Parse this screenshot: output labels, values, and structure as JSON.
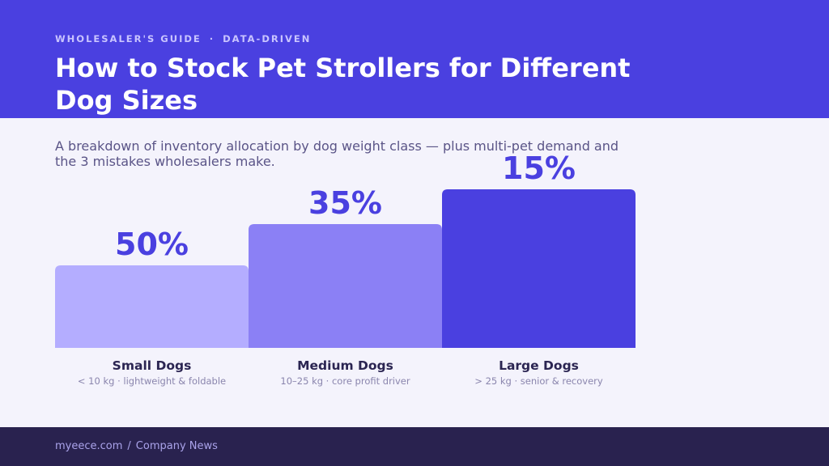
{
  "header": {
    "eyebrow_left": "WHOLESALER'S GUIDE",
    "eyebrow_sep": "·",
    "eyebrow_right": "DATA-DRIVEN",
    "title": "How to Stock Pet Strollers for Different Dog Sizes"
  },
  "subtitle": "A breakdown of inventory allocation by dog weight class — plus multi-pet demand and the 3 mistakes wholesalers make.",
  "chart_data": {
    "type": "bar",
    "title": "",
    "xlabel": "",
    "ylabel": "",
    "categories": [
      "Small Dogs",
      "Medium Dogs",
      "Large Dogs"
    ],
    "descriptions": [
      "< 10 kg · lightweight & foldable",
      "10–25 kg · core profit driver",
      "> 25 kg · senior & recovery"
    ],
    "values": [
      50,
      35,
      15
    ],
    "value_labels": [
      "50%",
      "35%",
      "15%"
    ],
    "colors": [
      "#b4adff",
      "#8b80f5",
      "#4a40e0"
    ],
    "grid": false,
    "legend": "none"
  },
  "colors": {
    "accent": "#4a40e0",
    "footer_bg": "#29224f",
    "page_bg": "#f4f3fc"
  },
  "footer": {
    "site": "myeece.com",
    "sep": "/",
    "section": "Company News"
  }
}
